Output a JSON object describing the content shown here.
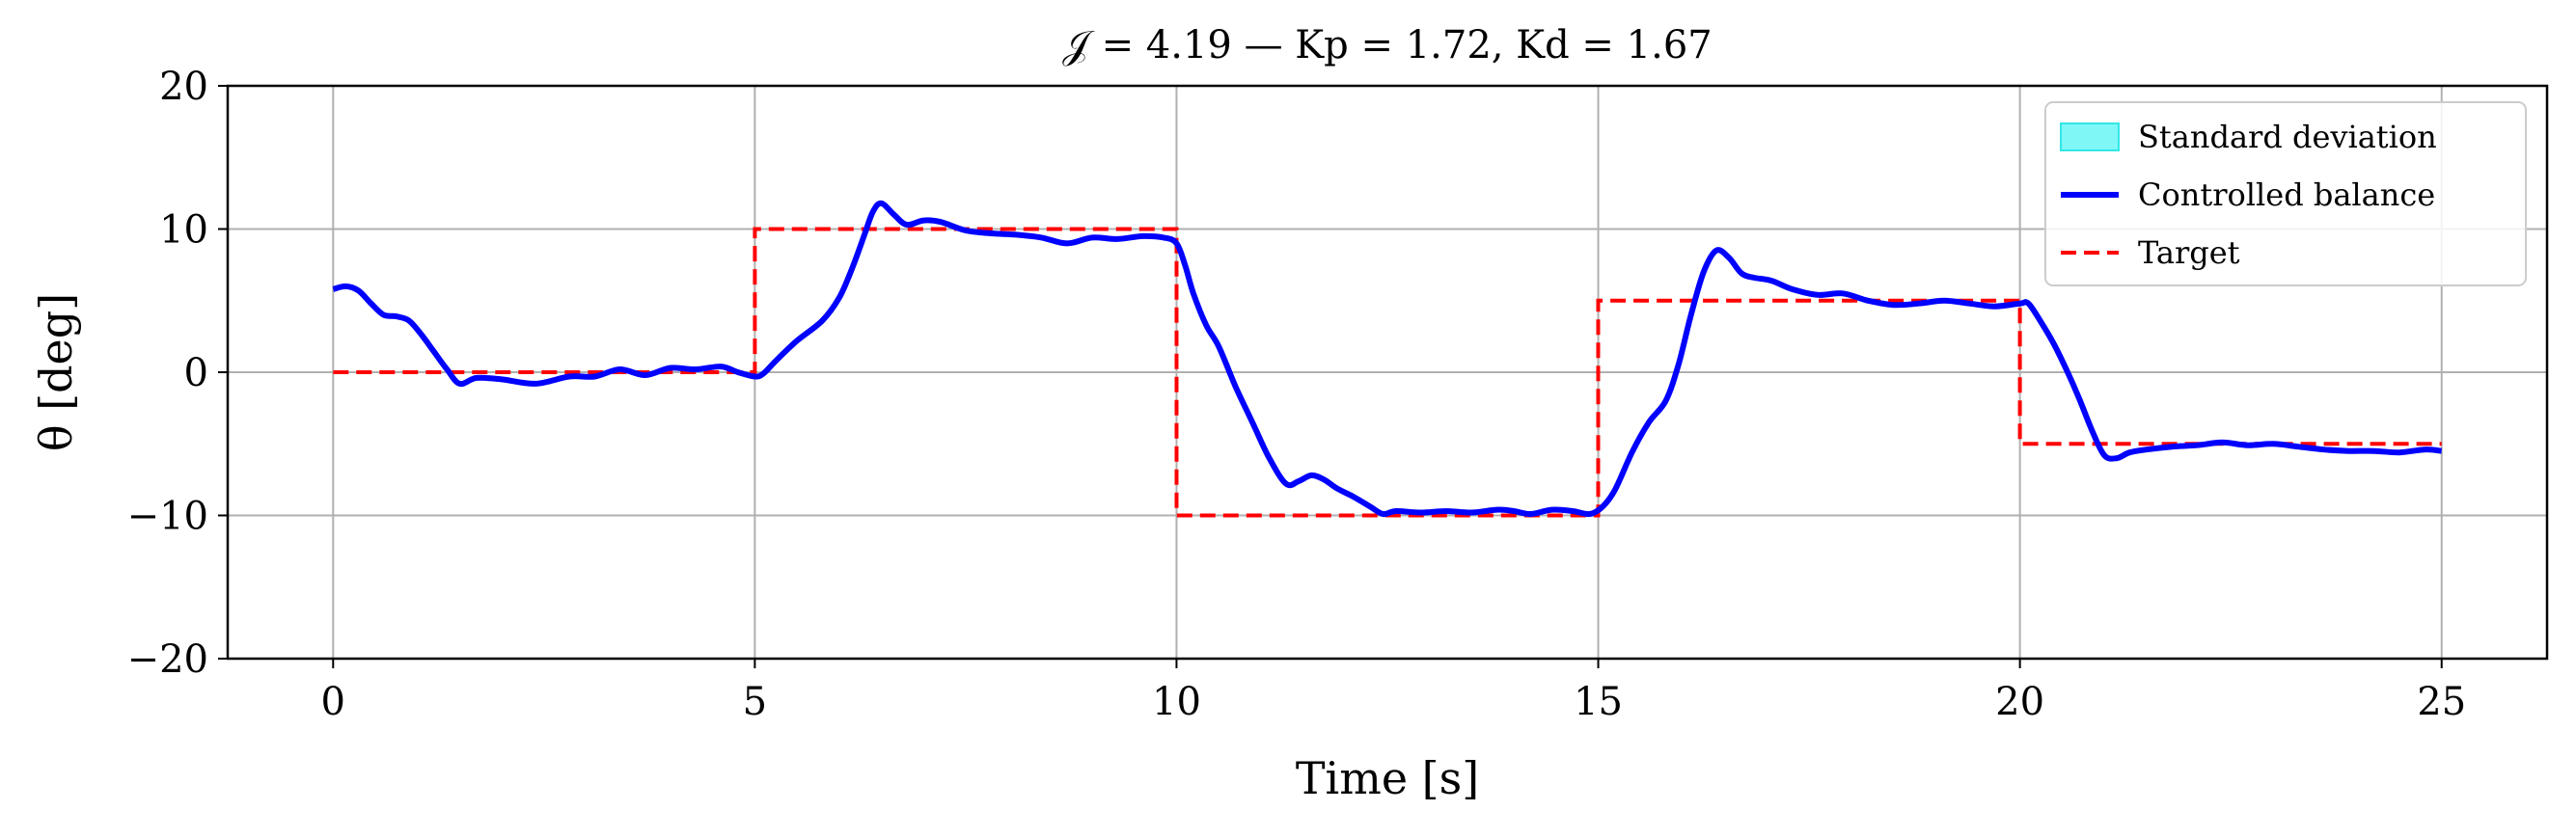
{
  "chart_data": {
    "type": "line",
    "title": "𝒥 = 4.19 — Kp = 1.72, Kd = 1.67",
    "xlabel": "Time [s]",
    "ylabel": "θ [deg]",
    "xlim": [
      -1.25,
      26.25
    ],
    "ylim": [
      -20,
      20
    ],
    "xticks": [
      0,
      5,
      10,
      15,
      20,
      25
    ],
    "yticks": [
      20,
      10,
      0,
      -10,
      -20
    ],
    "ytick_labels": [
      "20",
      "10",
      "0",
      "−10",
      "−20"
    ],
    "grid": true,
    "legend_position": "top-right",
    "legend": [
      {
        "label": "Standard deviation",
        "kind": "patch",
        "color": "#7ff7f7",
        "edge": "#33e6e6"
      },
      {
        "label": "Controlled balance",
        "kind": "line",
        "color": "#0000ff"
      },
      {
        "label": "Target",
        "kind": "dashed",
        "color": "#ff0000"
      }
    ],
    "series": [
      {
        "name": "Controlled balance",
        "color": "#0000ff",
        "x": [
          0,
          0.15,
          0.3,
          0.45,
          0.6,
          0.75,
          0.9,
          1.05,
          1.2,
          1.35,
          1.5,
          1.7,
          2.0,
          2.4,
          2.8,
          3.1,
          3.4,
          3.7,
          4.0,
          4.3,
          4.6,
          4.8,
          5.0,
          5.1,
          5.25,
          5.5,
          5.8,
          6.0,
          6.15,
          6.3,
          6.4,
          6.5,
          6.65,
          6.8,
          7.0,
          7.2,
          7.5,
          7.8,
          8.1,
          8.4,
          8.7,
          9.0,
          9.3,
          9.6,
          9.85,
          10.0,
          10.1,
          10.2,
          10.35,
          10.5,
          10.7,
          10.9,
          11.1,
          11.3,
          11.45,
          11.6,
          11.75,
          11.9,
          12.1,
          12.3,
          12.45,
          12.6,
          12.9,
          13.2,
          13.5,
          13.8,
          14.0,
          14.2,
          14.45,
          14.7,
          14.9,
          15.05,
          15.2,
          15.4,
          15.6,
          15.8,
          15.95,
          16.1,
          16.25,
          16.4,
          16.55,
          16.7,
          16.85,
          17.05,
          17.3,
          17.6,
          17.9,
          18.2,
          18.5,
          18.8,
          19.1,
          19.4,
          19.7,
          20.0,
          20.1,
          20.25,
          20.4,
          20.55,
          20.7,
          20.85,
          21.0,
          21.15,
          21.3,
          21.5,
          21.8,
          22.1,
          22.4,
          22.7,
          23.0,
          23.3,
          23.6,
          23.9,
          24.2,
          24.5,
          24.8,
          25.0
        ],
        "y": [
          5.8,
          6.0,
          5.7,
          4.8,
          4.0,
          3.9,
          3.6,
          2.6,
          1.4,
          0.2,
          -0.8,
          -0.4,
          -0.5,
          -0.8,
          -0.3,
          -0.3,
          0.2,
          -0.2,
          0.3,
          0.2,
          0.4,
          0.0,
          -0.3,
          -0.1,
          0.8,
          2.2,
          3.6,
          5.2,
          7.2,
          9.6,
          11.2,
          11.8,
          11.0,
          10.3,
          10.6,
          10.5,
          9.9,
          9.7,
          9.6,
          9.4,
          9.0,
          9.4,
          9.3,
          9.5,
          9.4,
          9.0,
          7.5,
          5.5,
          3.3,
          1.8,
          -1.0,
          -3.5,
          -6.0,
          -7.8,
          -7.6,
          -7.2,
          -7.5,
          -8.1,
          -8.7,
          -9.4,
          -9.9,
          -9.7,
          -9.8,
          -9.7,
          -9.8,
          -9.6,
          -9.7,
          -9.9,
          -9.6,
          -9.7,
          -9.9,
          -9.4,
          -8.2,
          -5.6,
          -3.5,
          -2.0,
          0.5,
          4.0,
          7.0,
          8.5,
          8.0,
          6.9,
          6.6,
          6.4,
          5.8,
          5.4,
          5.5,
          5.0,
          4.7,
          4.8,
          5.0,
          4.8,
          4.6,
          4.8,
          4.8,
          3.5,
          2.0,
          0.2,
          -1.8,
          -4.0,
          -5.8,
          -6.0,
          -5.6,
          -5.4,
          -5.2,
          -5.1,
          -4.9,
          -5.1,
          -5.0,
          -5.2,
          -5.4,
          -5.5,
          -5.5,
          -5.6,
          -5.4,
          -5.5
        ]
      },
      {
        "name": "Target",
        "color": "#ff0000",
        "x": [
          0,
          5,
          5,
          10,
          10,
          15,
          15,
          20,
          20,
          25
        ],
        "y": [
          0,
          0,
          10,
          10,
          -10,
          -10,
          5,
          5,
          -5,
          -5
        ]
      }
    ]
  }
}
